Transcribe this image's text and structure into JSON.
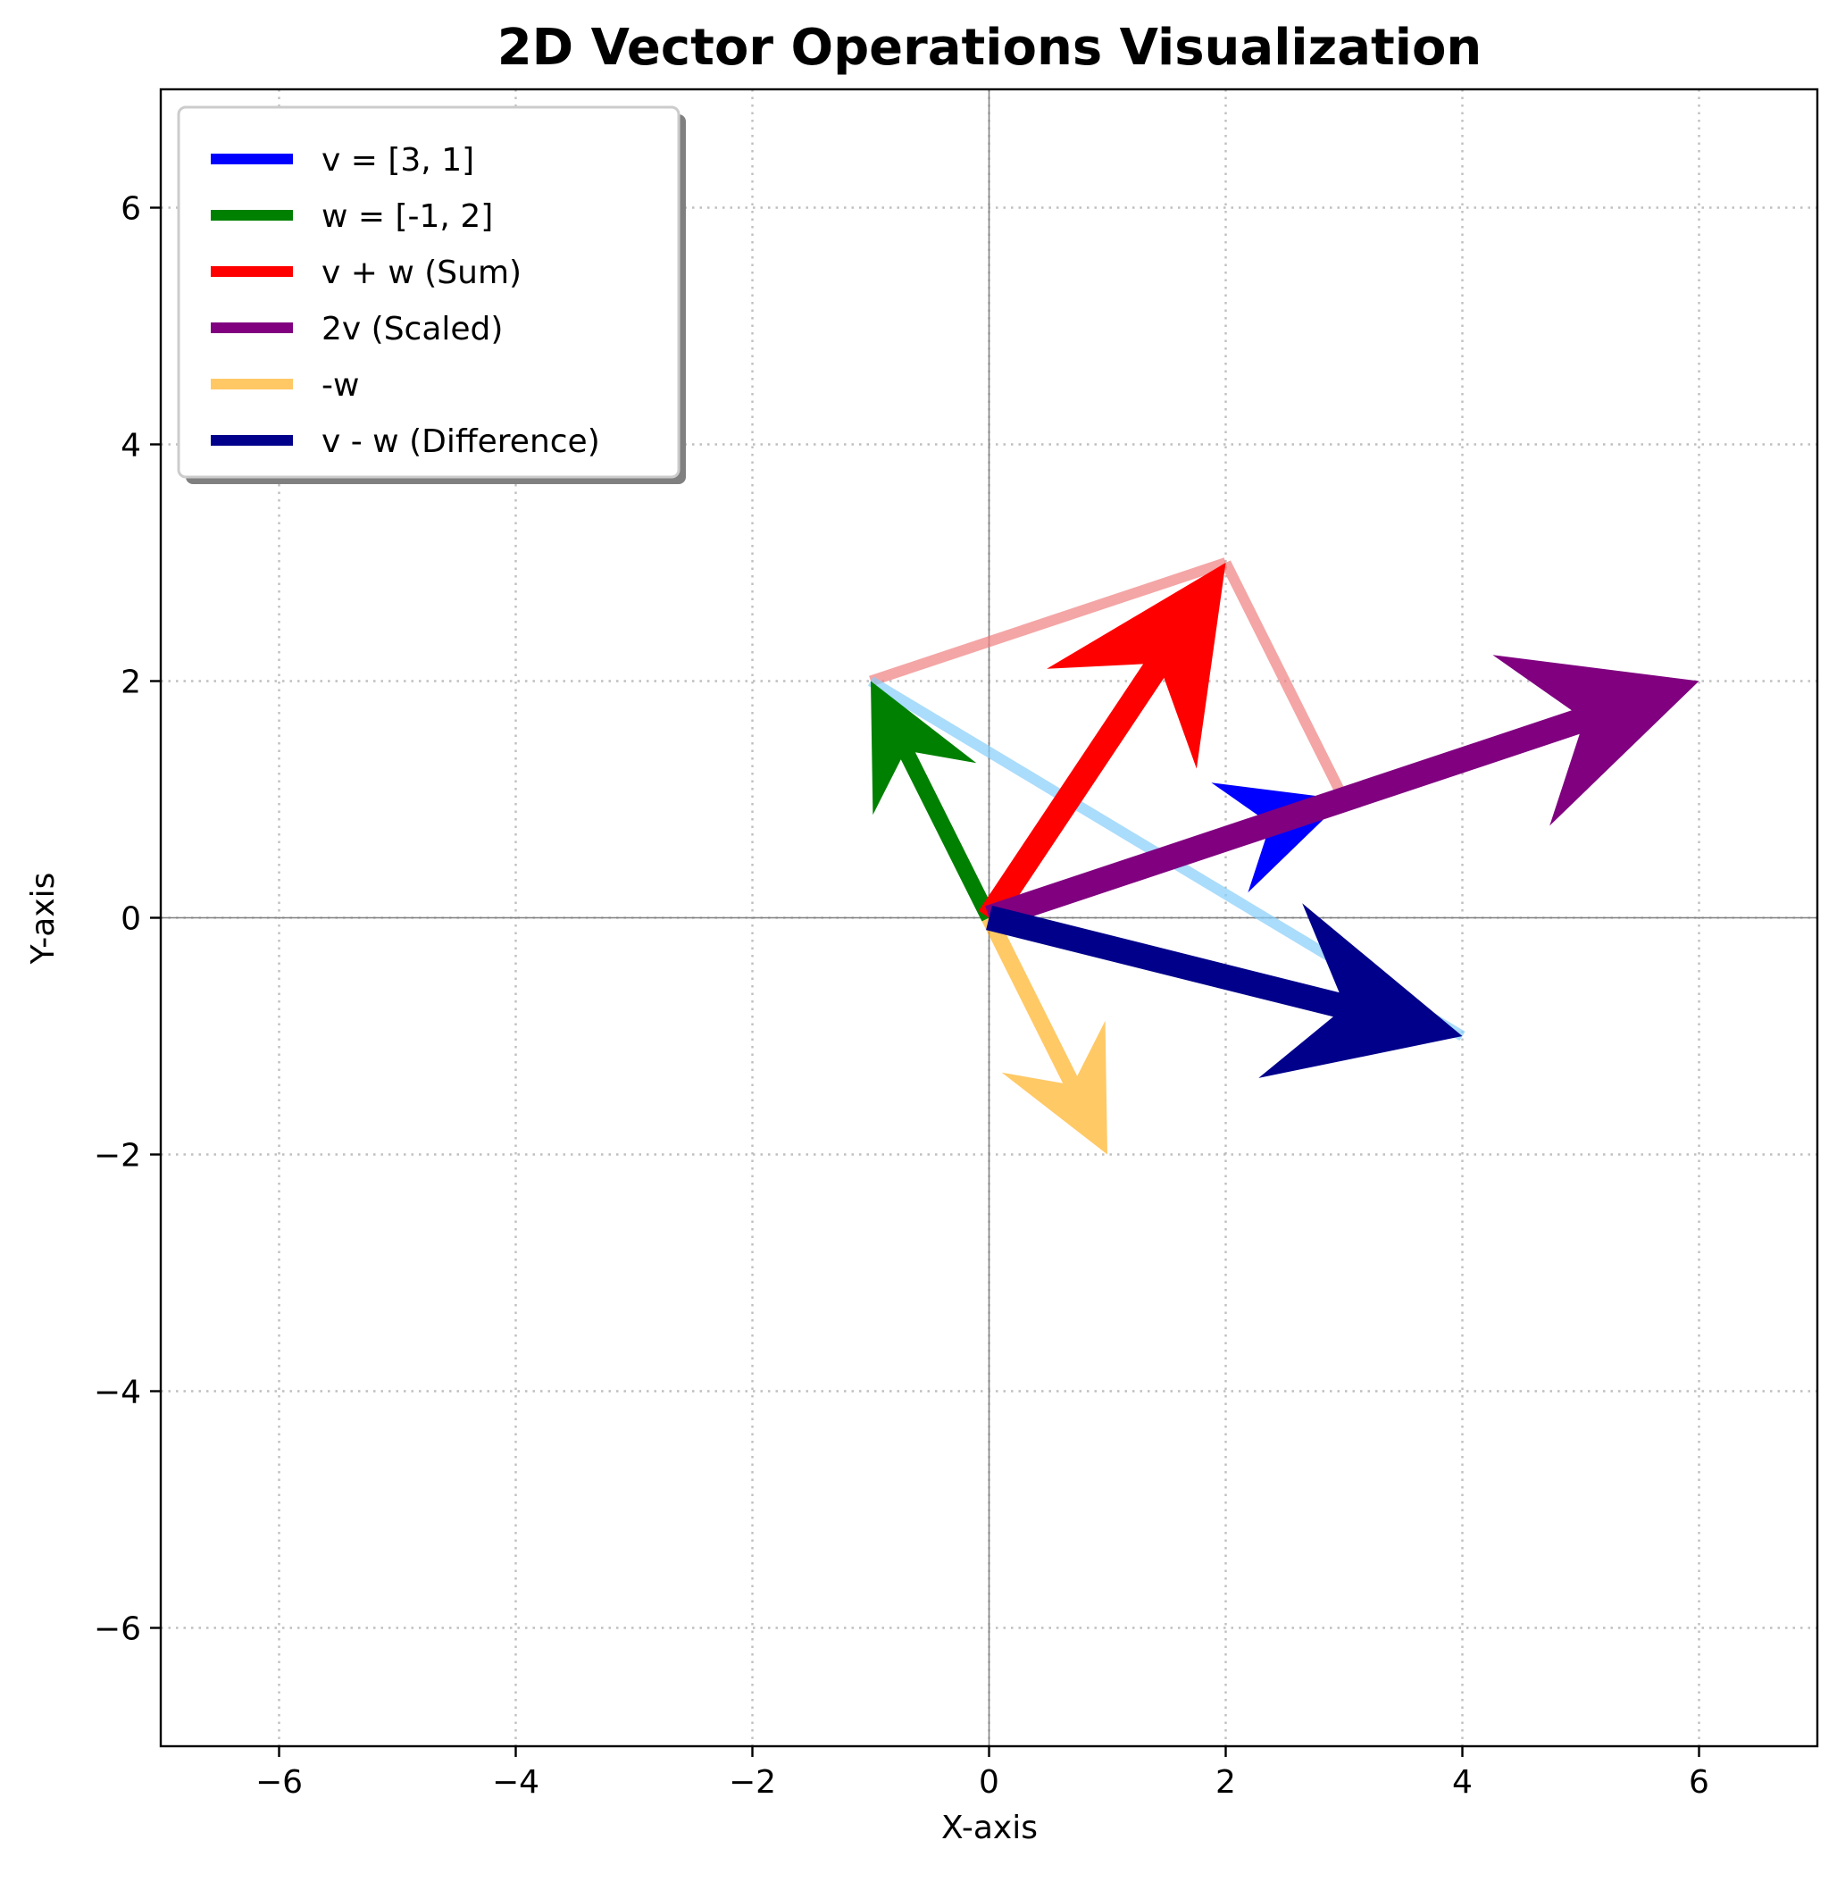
{
  "chart_data": {
    "type": "quiver",
    "title": "2D Vector Operations Visualization",
    "xlabel": "X-axis",
    "ylabel": "Y-axis",
    "xlim": [
      -7,
      7
    ],
    "ylim": [
      -7,
      7
    ],
    "xticks": [
      -6,
      -4,
      -2,
      0,
      2,
      4,
      6
    ],
    "yticks": [
      -6,
      -4,
      -2,
      0,
      2,
      4,
      6
    ],
    "xtick_labels": [
      "−6",
      "−4",
      "−2",
      "0",
      "2",
      "4",
      "6"
    ],
    "ytick_labels": [
      "−6",
      "−4",
      "−2",
      "0",
      "2",
      "4",
      "6"
    ],
    "grid": true,
    "grid_style": "dotted",
    "legend_position": "upper left",
    "vectors": [
      {
        "name": "v = [3, 1]",
        "origin": [
          0,
          0
        ],
        "components": [
          3,
          1
        ],
        "color": "#0000ff",
        "opacity": 1.0,
        "width": "thin"
      },
      {
        "name": "w = [-1, 2]",
        "origin": [
          0,
          0
        ],
        "components": [
          -1,
          2
        ],
        "color": "#008000",
        "opacity": 1.0,
        "width": "thin"
      },
      {
        "name": "v + w (Sum)",
        "origin": [
          0,
          0
        ],
        "components": [
          2,
          3
        ],
        "color": "#ff0000",
        "opacity": 1.0,
        "width": "thick"
      },
      {
        "name": "2v (Scaled)",
        "origin": [
          0,
          0
        ],
        "components": [
          6,
          2
        ],
        "color": "#800080",
        "opacity": 1.0,
        "width": "thick"
      },
      {
        "name": "-w",
        "origin": [
          0,
          0
        ],
        "components": [
          1,
          -2
        ],
        "color": "#ffa500",
        "opacity": 0.6,
        "width": "thin"
      },
      {
        "name": "v - w (Difference)",
        "origin": [
          0,
          0
        ],
        "components": [
          4,
          -1
        ],
        "color": "#00008b",
        "opacity": 1.0,
        "width": "thick"
      }
    ],
    "guide_lines": [
      {
        "from": [
          -1,
          2
        ],
        "to": [
          2,
          3
        ],
        "color": "#f08080",
        "opacity": 0.7
      },
      {
        "from": [
          3,
          1
        ],
        "to": [
          2,
          3
        ],
        "color": "#f08080",
        "opacity": 0.7
      },
      {
        "from": [
          -1,
          2
        ],
        "to": [
          4,
          -1
        ],
        "color": "#87cefa",
        "opacity": 0.7
      }
    ]
  }
}
